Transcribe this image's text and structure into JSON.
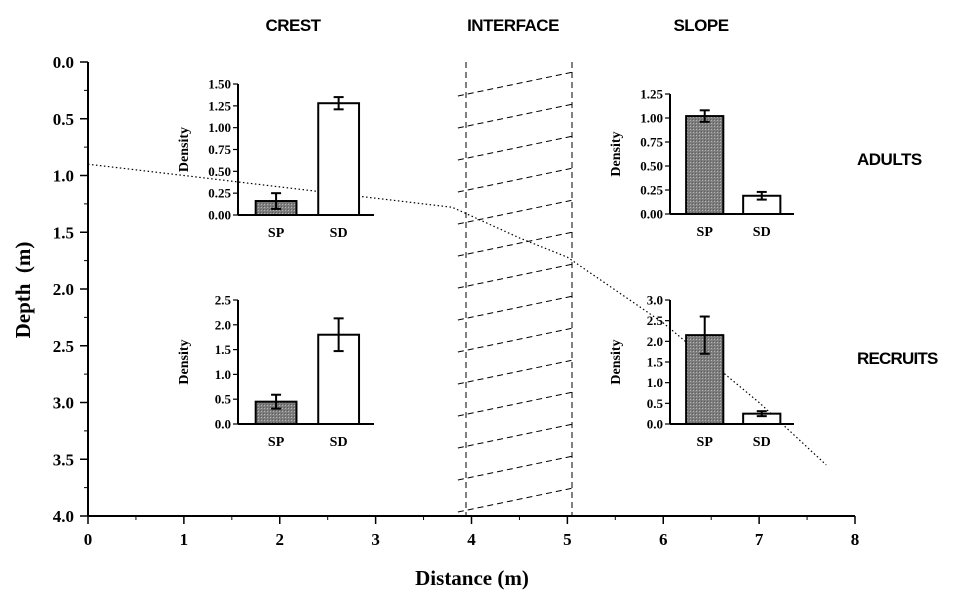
{
  "chart_data": {
    "type": "line",
    "xlabel": "Distance (m)",
    "ylabel": "Depth  (m)",
    "xlim": [
      0,
      8
    ],
    "ylim": [
      0.0,
      4.0
    ],
    "y_inverted": true,
    "xticks": [
      "0",
      "1",
      "2",
      "3",
      "4",
      "5",
      "6",
      "7",
      "8"
    ],
    "yticks": [
      "0.0",
      "0.5",
      "1.0",
      "1.5",
      "2.0",
      "2.5",
      "3.0",
      "3.5",
      "4.0"
    ],
    "zone_labels": [
      "CREST",
      "INTERFACE",
      "SLOPE"
    ],
    "row_labels": [
      "ADULTS",
      "RECRUITS"
    ],
    "profile": {
      "style": "dotted",
      "x": [
        0.0,
        1.0,
        2.0,
        3.0,
        3.8,
        4.5,
        5.0,
        6.0,
        7.0,
        7.7
      ],
      "y": [
        0.9,
        1.0,
        1.1,
        1.2,
        1.28,
        1.55,
        1.72,
        2.3,
        3.0,
        3.55
      ]
    },
    "interface_zone": {
      "x": [
        3.9,
        5.05
      ],
      "fill": "diagonal-dashed-hatch"
    },
    "insets": [
      {
        "zone": "CREST",
        "row": "ADULTS",
        "type": "bar",
        "ylabel": "Density",
        "ylim": [
          0.0,
          1.5
        ],
        "yticks": [
          "0.00",
          "0.25",
          "0.50",
          "0.75",
          "1.00",
          "1.25",
          "1.50"
        ],
        "categories": [
          "SP",
          "SD"
        ],
        "values": [
          0.16,
          1.28
        ],
        "errors": [
          0.09,
          0.07
        ]
      },
      {
        "zone": "SLOPE",
        "row": "ADULTS",
        "type": "bar",
        "ylabel": "Density",
        "ylim": [
          0.0,
          1.25
        ],
        "yticks": [
          "0.00",
          "0.25",
          "0.50",
          "0.75",
          "1.00",
          "1.25"
        ],
        "categories": [
          "SP",
          "SD"
        ],
        "values": [
          1.02,
          0.19
        ],
        "errors": [
          0.06,
          0.04
        ]
      },
      {
        "zone": "CREST",
        "row": "RECRUITS",
        "type": "bar",
        "ylabel": "Density",
        "ylim": [
          0.0,
          2.5
        ],
        "yticks": [
          "0.0",
          "0.5",
          "1.0",
          "1.5",
          "2.0",
          "2.5"
        ],
        "categories": [
          "SP",
          "SD"
        ],
        "values": [
          0.45,
          1.8
        ],
        "errors": [
          0.14,
          0.33
        ]
      },
      {
        "zone": "SLOPE",
        "row": "RECRUITS",
        "type": "bar",
        "ylabel": "Density",
        "ylim": [
          0.0,
          3.0
        ],
        "yticks": [
          "0.0",
          "0.5",
          "1.0",
          "1.5",
          "2.0",
          "2.5",
          "3.0"
        ],
        "categories": [
          "SP",
          "SD"
        ],
        "values": [
          2.15,
          0.25
        ],
        "errors": [
          0.45,
          0.06
        ]
      }
    ],
    "colors": {
      "SP": "#8f8f8f",
      "SD": "#ffffff",
      "axis": "#000000"
    }
  }
}
